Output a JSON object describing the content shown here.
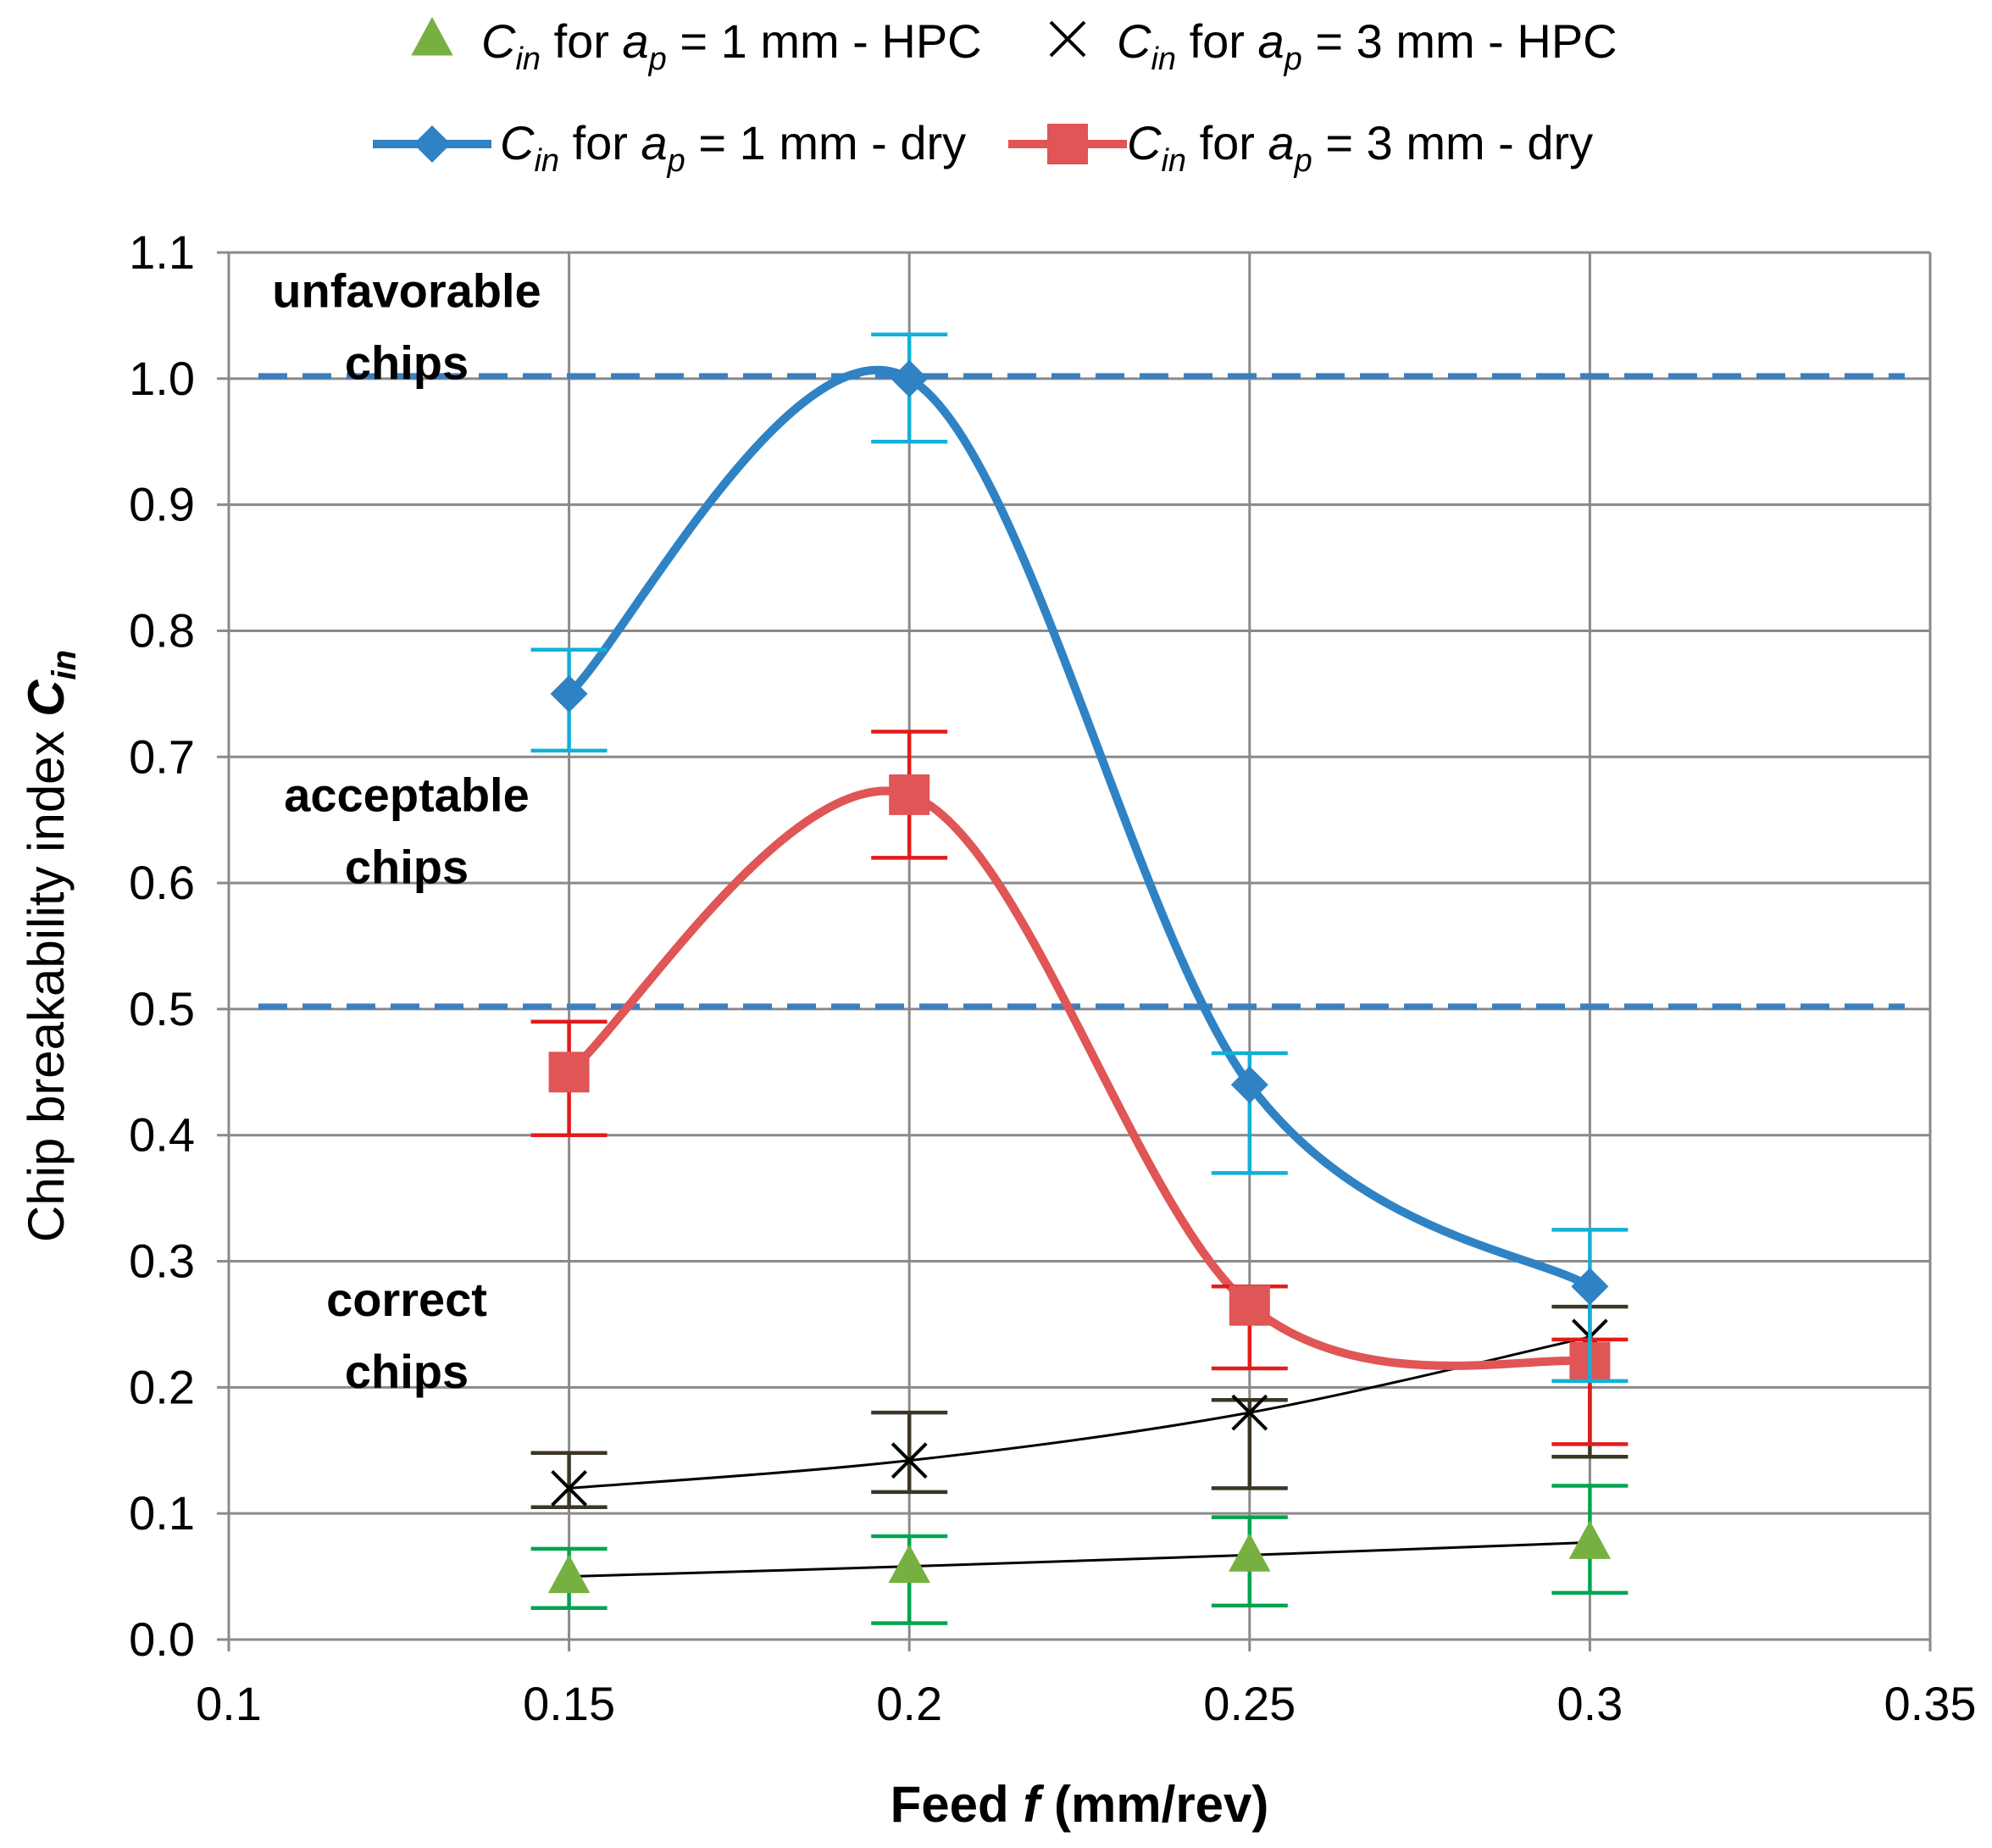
{
  "chart_data": {
    "type": "line",
    "xlabel_prefix": "Feed ",
    "xlabel_var": "f",
    "xlabel_suffix": " (mm/rev)",
    "ylabel_text": "Chip breakability index",
    "ylabel_var": "C",
    "ylabel_sub": "in",
    "xlim": [
      0.1,
      0.35
    ],
    "ylim": [
      0.0,
      1.1
    ],
    "grid": true,
    "x_ticks": [
      "0.1",
      "0.15",
      "0.2",
      "0.25",
      "0.3",
      "0.35"
    ],
    "y_ticks": [
      "0.0",
      "0.1",
      "0.2",
      "0.3",
      "0.4",
      "0.5",
      "0.6",
      "0.7",
      "0.8",
      "0.9",
      "1.0",
      "1.1"
    ],
    "x": [
      0.15,
      0.2,
      0.25,
      0.3
    ],
    "reference_lines": [
      1.0,
      0.5
    ],
    "zones": [
      {
        "line1": "unfavorable",
        "line2": "chips",
        "y": 1.05
      },
      {
        "line1": "acceptable",
        "line2": "chips",
        "y": 0.65
      },
      {
        "line1": "correct",
        "line2": "chips",
        "y": 0.25
      }
    ],
    "series": [
      {
        "name": "Cin for ap = 1 mm - HPC",
        "ap": "1",
        "mode": "HPC",
        "values": [
          0.05,
          0.058,
          0.067,
          0.077
        ],
        "err_low": [
          0.025,
          0.045,
          0.04,
          0.04
        ],
        "err_high": [
          0.022,
          0.024,
          0.03,
          0.045
        ],
        "color": "#76b041",
        "err_color": "#00a550",
        "line_color": "#000000",
        "marker": "triangle"
      },
      {
        "name": "Cin for ap = 3 mm - HPC",
        "ap": "3",
        "mode": "HPC",
        "values": [
          0.12,
          0.142,
          0.18,
          0.24
        ],
        "err_low": [
          0.015,
          0.025,
          0.06,
          0.095
        ],
        "err_high": [
          0.028,
          0.038,
          0.01,
          0.024
        ],
        "color": "#000000",
        "err_color": "#3b3626",
        "line_color": "#000000",
        "marker": "x"
      },
      {
        "name": "Cin for ap = 1 mm - dry",
        "ap": "1",
        "mode": "dry",
        "values": [
          0.75,
          1.0,
          0.44,
          0.28
        ],
        "err_low": [
          0.045,
          0.05,
          0.07,
          0.075
        ],
        "err_high": [
          0.035,
          0.035,
          0.025,
          0.045
        ],
        "color": "#2f83c4",
        "err_color": "#11b0d8",
        "line_color": "#2f83c4",
        "marker": "diamond"
      },
      {
        "name": "Cin for ap = 3 mm - dry",
        "ap": "3",
        "mode": "dry",
        "values": [
          0.45,
          0.67,
          0.265,
          0.22
        ],
        "err_low": [
          0.05,
          0.05,
          0.05,
          0.065
        ],
        "err_high": [
          0.04,
          0.05,
          0.015,
          0.018
        ],
        "color": "#e05555",
        "err_color": "#e31b1b",
        "line_color": "#e05555",
        "marker": "square"
      }
    ],
    "legend": {
      "prefix_var": "C",
      "prefix_sub": "in",
      "word_for": " for ",
      "var_a": "a",
      "sub_p": "p",
      "unit_text": " mm - ",
      "equals": " = ",
      "placement": "top"
    }
  }
}
